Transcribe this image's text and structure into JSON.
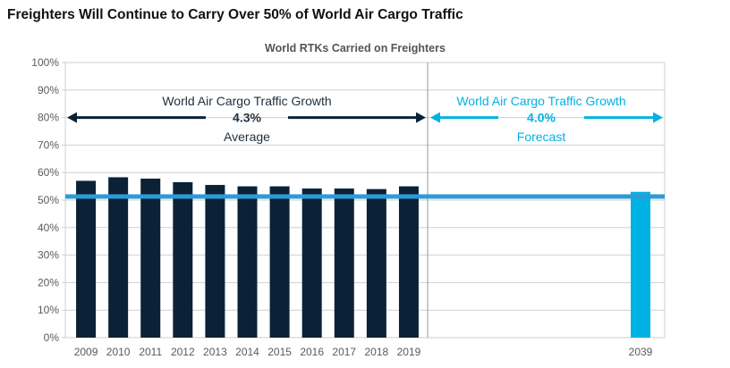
{
  "page_title": "Freighters Will Continue to Carry Over 50% of World Air Cargo Traffic",
  "colors": {
    "historical": "#0b2236",
    "forecast": "#00b2e3",
    "reference_line": "#2e9bd6",
    "grid": "#cfcfcf",
    "axis_text": "#5a5a5a"
  },
  "annotations": {
    "historical": {
      "line1": "World Air Cargo Traffic Growth",
      "value": "4.3%",
      "line3": "Average"
    },
    "forecast": {
      "line1": "World Air Cargo Traffic Growth",
      "value": "4.0%",
      "line3": "Forecast"
    }
  },
  "chart_data": {
    "type": "bar",
    "title": "World RTKs Carried on Freighters",
    "xlabel": "",
    "ylabel": "",
    "ylim": [
      0,
      100
    ],
    "y_ticks": [
      "0%",
      "10%",
      "20%",
      "30%",
      "40%",
      "50%",
      "60%",
      "70%",
      "80%",
      "90%",
      "100%"
    ],
    "grid": true,
    "categories": [
      "2009",
      "2010",
      "2011",
      "2012",
      "2013",
      "2014",
      "2015",
      "2016",
      "2017",
      "2018",
      "2019",
      "2039"
    ],
    "values": [
      57,
      58.3,
      57.8,
      56.5,
      55.5,
      55,
      55,
      54.2,
      54.2,
      54,
      55,
      53
    ],
    "series_kind": [
      "historical",
      "historical",
      "historical",
      "historical",
      "historical",
      "historical",
      "historical",
      "historical",
      "historical",
      "historical",
      "historical",
      "forecast"
    ],
    "reference_line": 51.3
  }
}
